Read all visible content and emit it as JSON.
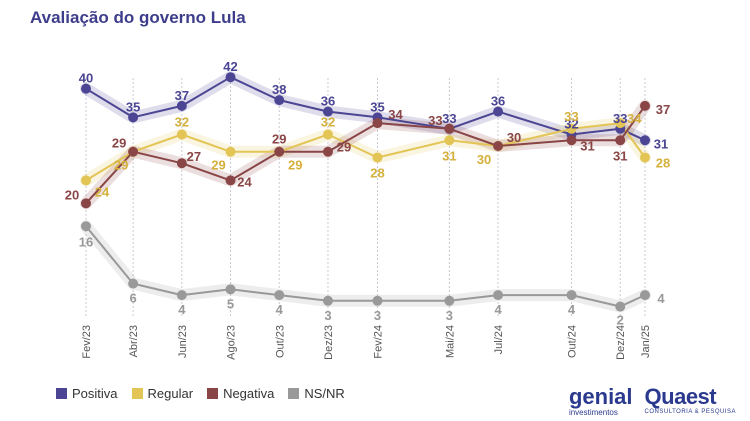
{
  "title": "Avaliação do governo Lula",
  "chart_data": {
    "type": "line",
    "categories": [
      "Fev/23",
      "Abr/23",
      "Jun/23",
      "Ago/23",
      "Out/23",
      "Dez/23",
      "Fev/24",
      "Mai/24",
      "Jul/24",
      "Out/24",
      "Dez/24",
      "Jan/25"
    ],
    "x_days": [
      0,
      59,
      120,
      181,
      242,
      303,
      365,
      455,
      516,
      608,
      669,
      700
    ],
    "ylim": [
      0,
      45
    ],
    "series": [
      {
        "name": "Positiva",
        "color": "#4b4593",
        "values": [
          40,
          35,
          37,
          42,
          38,
          36,
          35,
          33,
          36,
          32,
          33,
          31
        ]
      },
      {
        "name": "Regular",
        "color": "#e3c556",
        "values": [
          24,
          29,
          32,
          29,
          29,
          32,
          28,
          31,
          30,
          33,
          34,
          28
        ]
      },
      {
        "name": "Negativa",
        "color": "#8a4646",
        "values": [
          20,
          29,
          27,
          24,
          29,
          29,
          34,
          33,
          30,
          31,
          31,
          37
        ]
      },
      {
        "name": "NS/NR",
        "color": "#999999",
        "values": [
          16,
          6,
          4,
          5,
          4,
          3,
          3,
          3,
          4,
          4,
          2,
          4
        ]
      }
    ]
  },
  "legend": [
    {
      "label": "Positiva",
      "color": "#4b4593"
    },
    {
      "label": "Regular",
      "color": "#e3c556"
    },
    {
      "label": "Negativa",
      "color": "#8a4646"
    },
    {
      "label": "NS/NR",
      "color": "#999999"
    }
  ],
  "logos": {
    "genial_main": "genial",
    "genial_sub": "investimentos",
    "quaest_main": "Quaest",
    "quaest_sub": "CONSULTORIA & PESQUISA"
  }
}
